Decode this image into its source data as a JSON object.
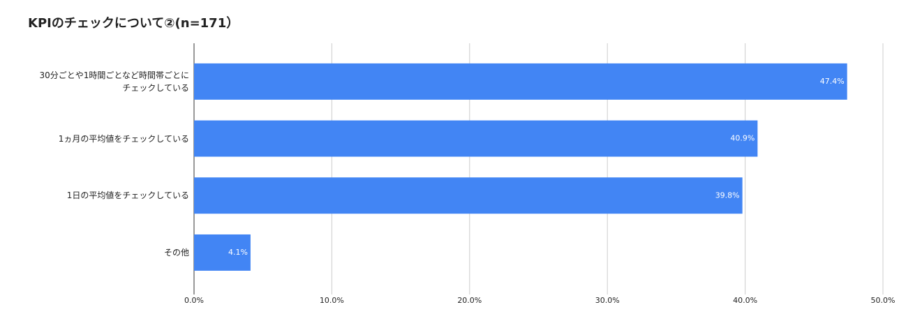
{
  "chart_data": {
    "type": "bar",
    "orientation": "horizontal",
    "title": "KPIのチェックについて②(n=171）",
    "categories": [
      "30分ごとや1時間ごとなど時間帯ごとに\nチェックしている",
      "1ヵ月の平均値をチェックしている",
      "1日の平均値をチェックしている",
      "その他"
    ],
    "values": [
      47.4,
      40.9,
      39.8,
      4.1
    ],
    "value_labels": [
      "47.4%",
      "40.9%",
      "39.8%",
      "4.1%"
    ],
    "color": "#4285f4",
    "xlim": [
      0,
      50
    ],
    "xticks": [
      {
        "value": 0,
        "label": "0.0%"
      },
      {
        "value": 10,
        "label": "10.0%"
      },
      {
        "value": 20,
        "label": "20.0%"
      },
      {
        "value": 30,
        "label": "30.0%"
      },
      {
        "value": 40,
        "label": "40.0%"
      },
      {
        "value": 50,
        "label": "50.0%"
      }
    ],
    "grid": true
  }
}
